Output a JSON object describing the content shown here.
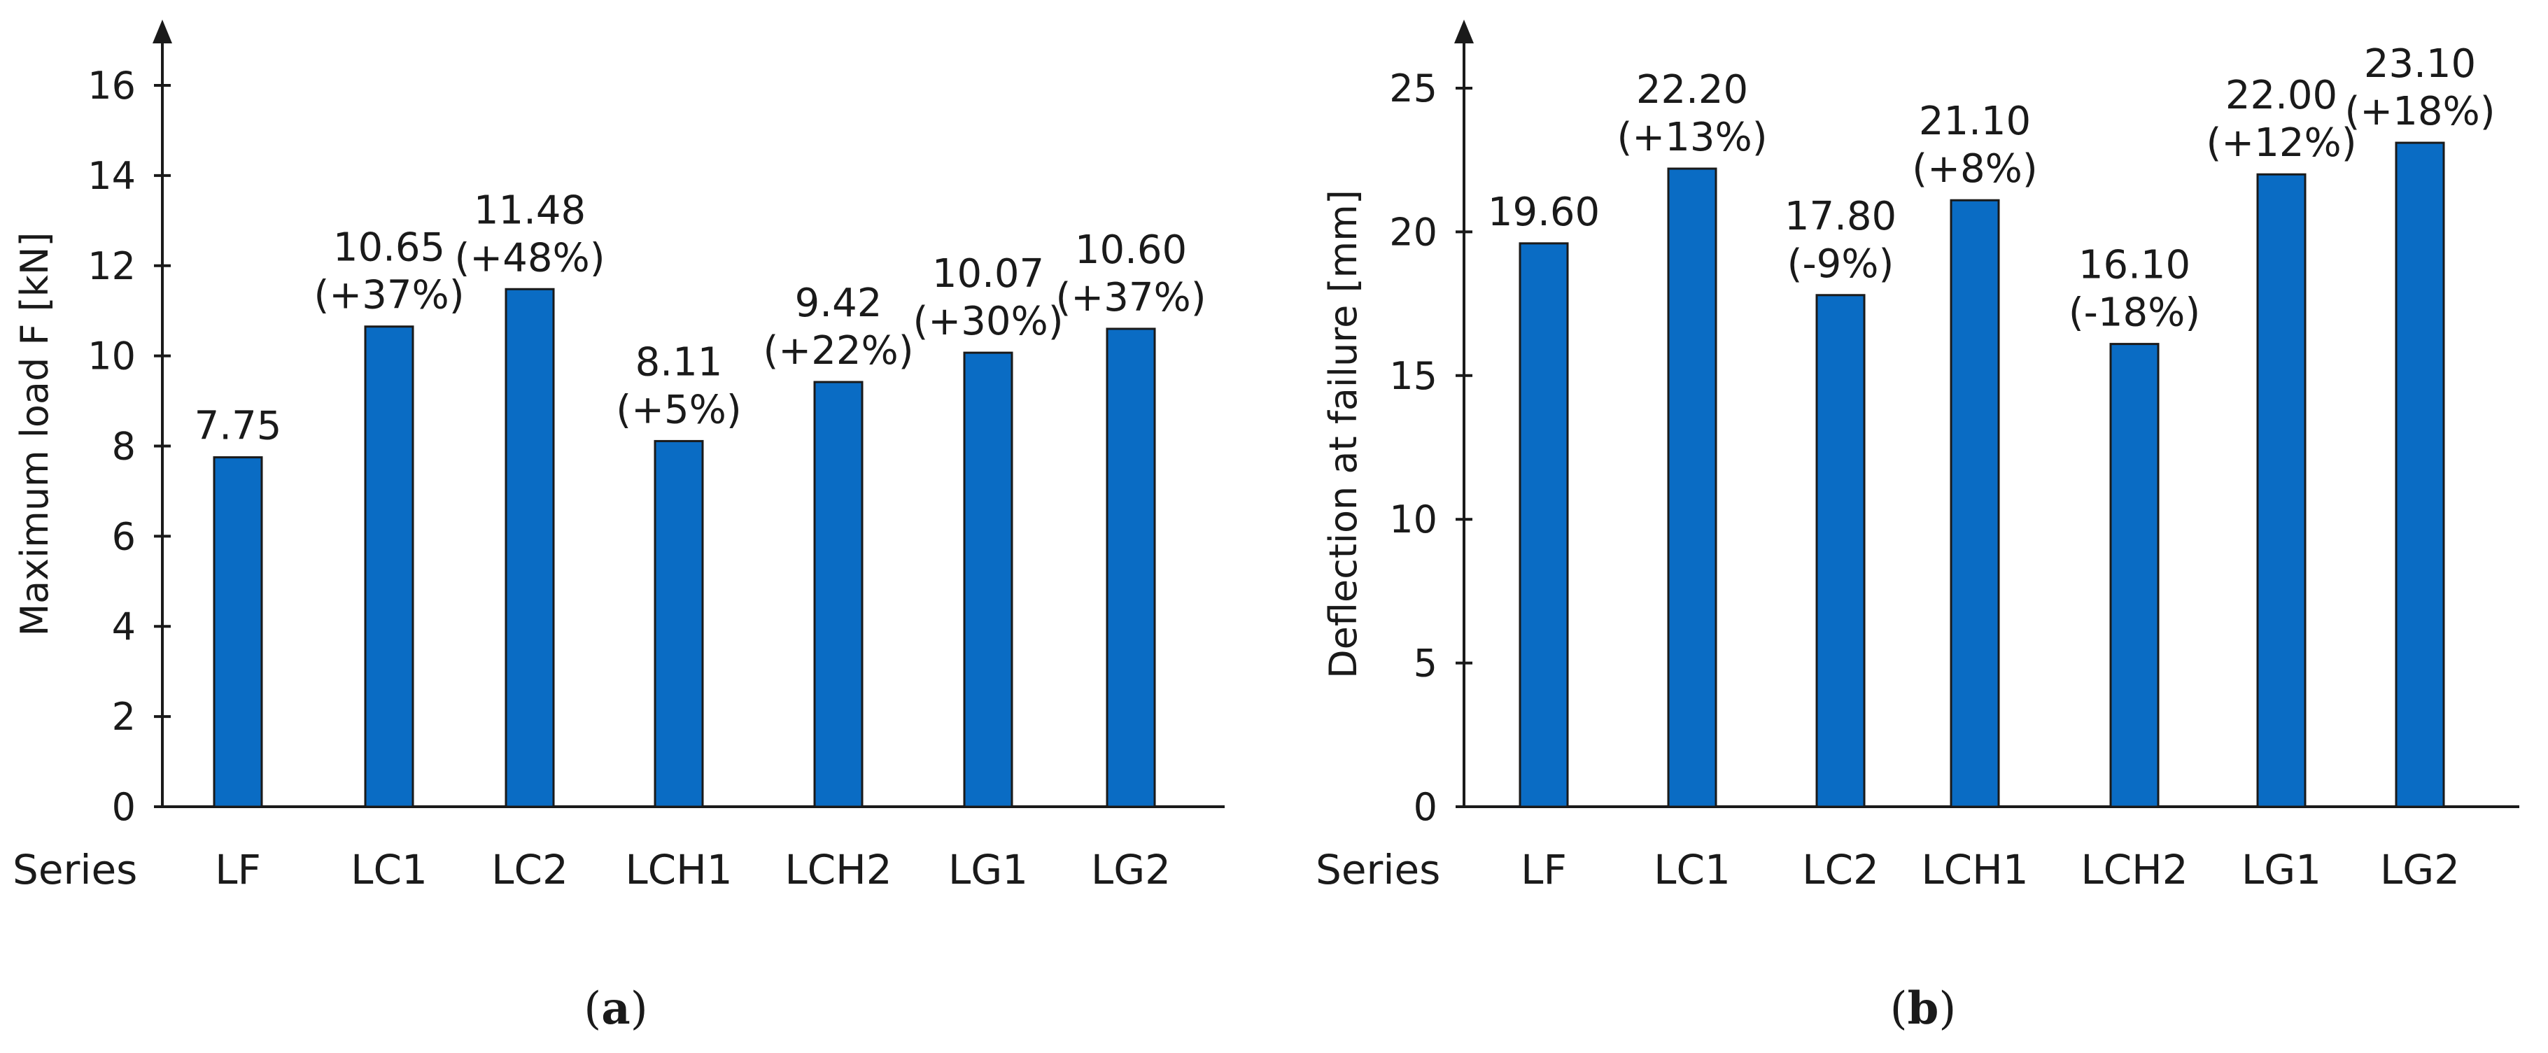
{
  "colors": {
    "bar": "#0a6cc4",
    "axis": "#1a1a1a"
  },
  "chart_data": [
    {
      "type": "bar",
      "panel": "a",
      "panel_label": "(a)",
      "xlabel": "Series",
      "ylabel": "Maximum load F [kN]",
      "ylim": [
        0,
        17
      ],
      "yticks": [
        0,
        2,
        4,
        6,
        8,
        10,
        12,
        14,
        16
      ],
      "categories": [
        "LF",
        "LC1",
        "LC2",
        "LCH1",
        "LCH2",
        "LG1",
        "LG2"
      ],
      "values": [
        7.75,
        10.65,
        11.48,
        8.11,
        9.42,
        10.07,
        10.6
      ],
      "value_labels": [
        "7.75",
        "10.65",
        "11.48",
        "8.11",
        "9.42",
        "10.07",
        "10.60"
      ],
      "change_labels": [
        "",
        "(+37%)",
        "(+48%)",
        "(+5%)",
        "(+22%)",
        "(+30%)",
        "(+37%)"
      ]
    },
    {
      "type": "bar",
      "panel": "b",
      "panel_label": "(b)",
      "xlabel": "Series",
      "ylabel": "Deflection at failure [mm]",
      "ylim": [
        0,
        27
      ],
      "yticks": [
        0,
        5,
        10,
        15,
        20,
        25
      ],
      "categories": [
        "LF",
        "LC1",
        "LC2",
        "LCH1",
        "LCH2",
        "LG1",
        "LG2"
      ],
      "values": [
        19.6,
        22.2,
        17.8,
        21.1,
        16.1,
        22.0,
        23.1
      ],
      "value_labels": [
        "19.60",
        "22.20",
        "17.80",
        "21.10",
        "16.10",
        "22.00",
        "23.10"
      ],
      "change_labels": [
        "",
        "(+13%)",
        "(-9%)",
        "(+8%)",
        "(-18%)",
        "(+12%)",
        "(+18%)"
      ]
    }
  ]
}
